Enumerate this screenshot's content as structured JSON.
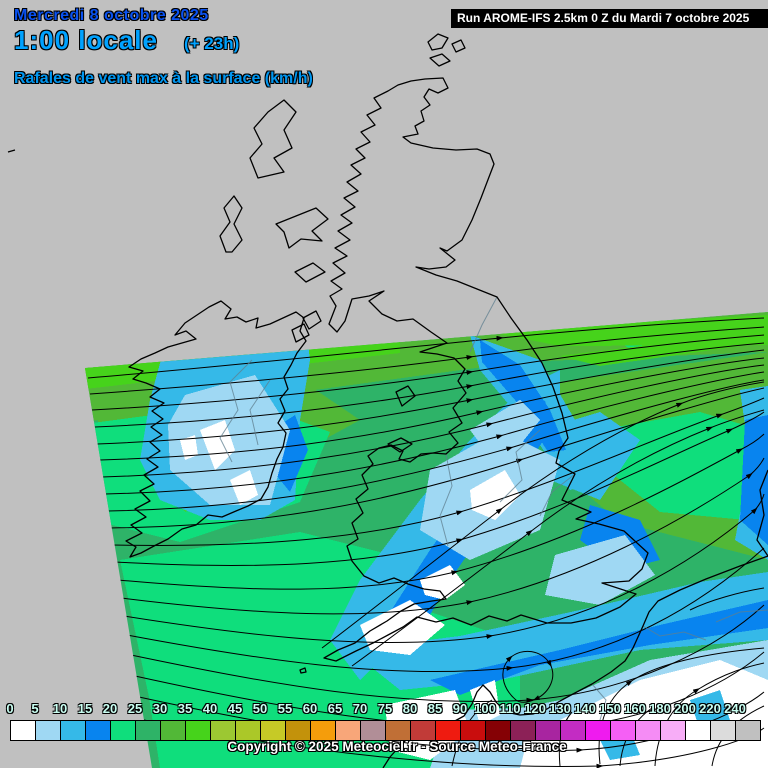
{
  "header": {
    "date": "Mercredi 8 octobre 2025",
    "time": "1:00 locale",
    "offset": "(+ 23h)",
    "variable": "Rafales de vent max à la surface (km/h)"
  },
  "run_banner": {
    "label": "Run AROME-IFS 2.5km 0 Z du Mardi 7 octobre 2025"
  },
  "footer": {
    "copyright": "Copyright © 2025 Meteociel.fr - Source Meteo-France"
  },
  "colorbar": {
    "unit": "km/h",
    "values": [
      "0",
      "5",
      "10",
      "15",
      "20",
      "25",
      "30",
      "35",
      "40",
      "45",
      "50",
      "55",
      "60",
      "65",
      "70",
      "75",
      "80",
      "85",
      "90",
      "100",
      "110",
      "120",
      "130",
      "140",
      "150",
      "160",
      "180",
      "200",
      "220",
      "240"
    ],
    "colors": [
      "#ffffff",
      "#9fd8f3",
      "#35b9e8",
      "#0884ef",
      "#0fde7c",
      "#2eb367",
      "#52b837",
      "#46d31b",
      "#9cc832",
      "#abc828",
      "#c6ca26",
      "#c3920b",
      "#f59d0b",
      "#f8a679",
      "#b18e97",
      "#c06f36",
      "#c13b38",
      "#ef1b10",
      "#c90d0d",
      "#850105",
      "#8c2157",
      "#a825a0",
      "#c32cc3",
      "#ef1bef",
      "#f55ff5",
      "#f58cf5",
      "#f7adf7",
      "#ffffff",
      "#dcdcdc",
      "#c0c0c0"
    ]
  },
  "map": {
    "background_color": "#c0c0c0",
    "coastline_color": "#000000",
    "streamline_color": "#000000"
  }
}
